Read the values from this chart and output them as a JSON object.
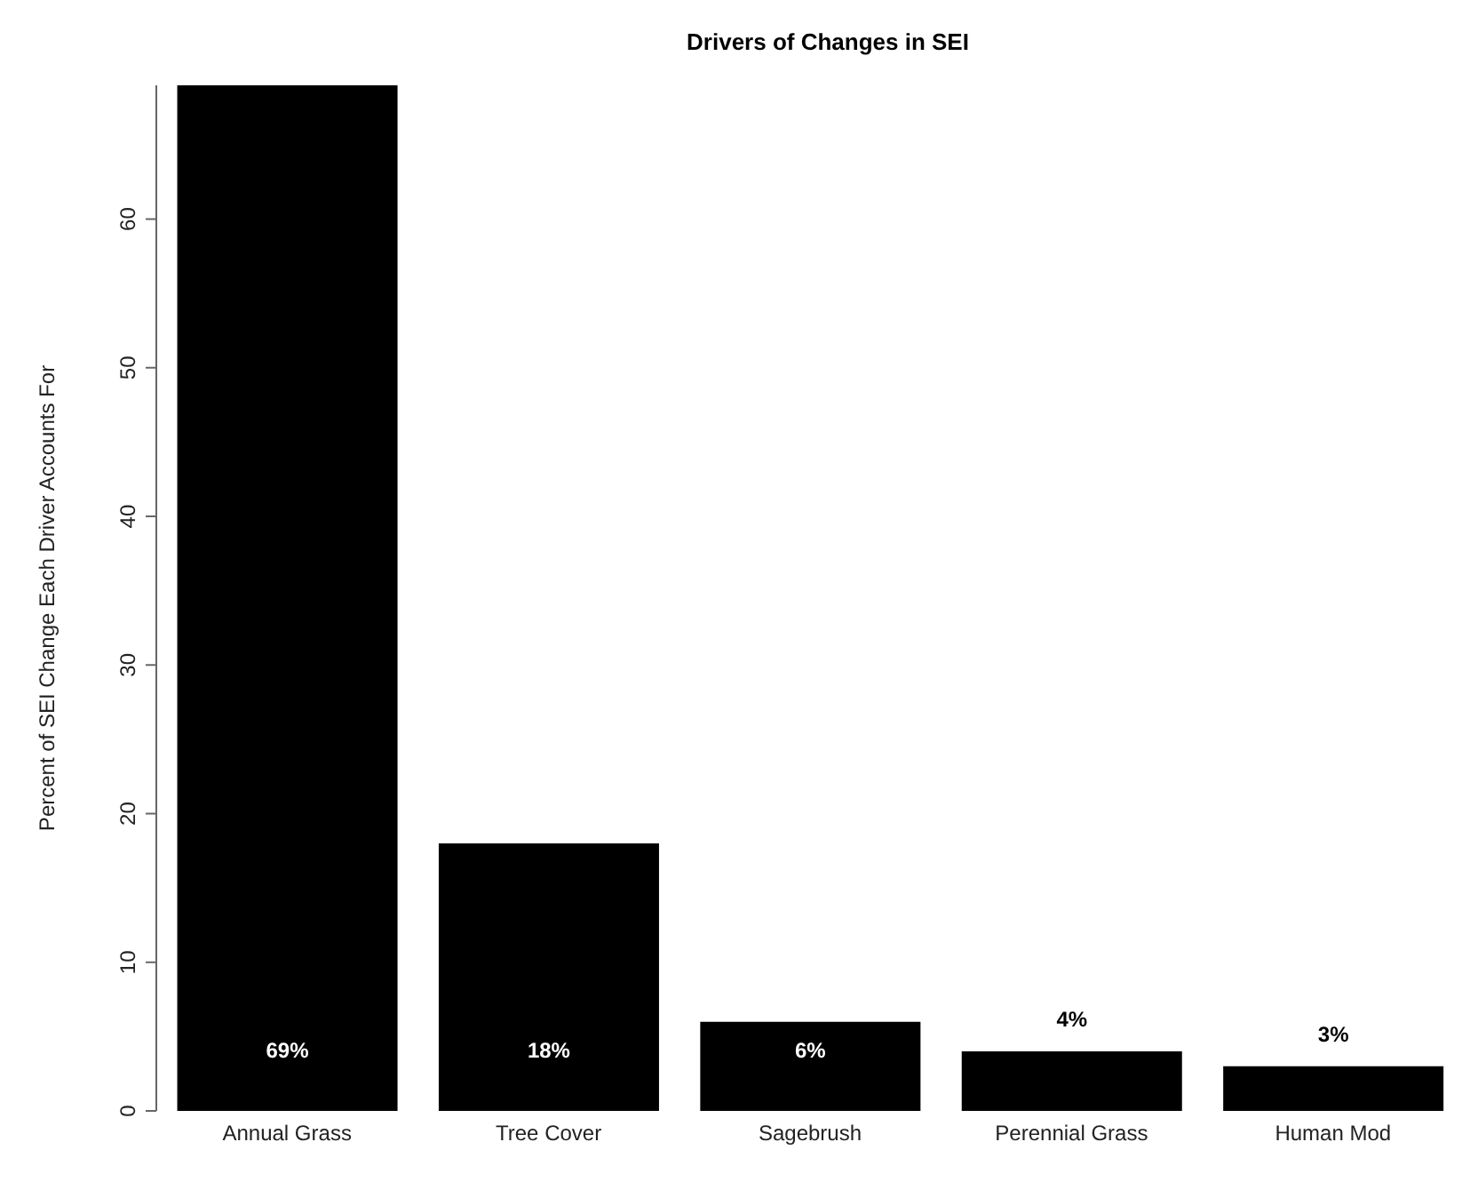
{
  "chart_data": {
    "type": "bar",
    "title": "Drivers of Changes in SEI",
    "ylabel": "Percent of SEI Change Each Driver Accounts For",
    "categories": [
      "Annual Grass",
      "Tree Cover",
      "Sagebrush",
      "Perennial Grass",
      "Human Mod"
    ],
    "values": [
      69,
      18,
      6,
      4,
      3
    ],
    "value_labels": [
      "69%",
      "18%",
      "6%",
      "4%",
      "3%"
    ],
    "color": "#000000",
    "ylim": [
      0,
      69
    ],
    "yticks": [
      0,
      10,
      20,
      30,
      40,
      50,
      60
    ],
    "grid": false,
    "legend": false
  }
}
